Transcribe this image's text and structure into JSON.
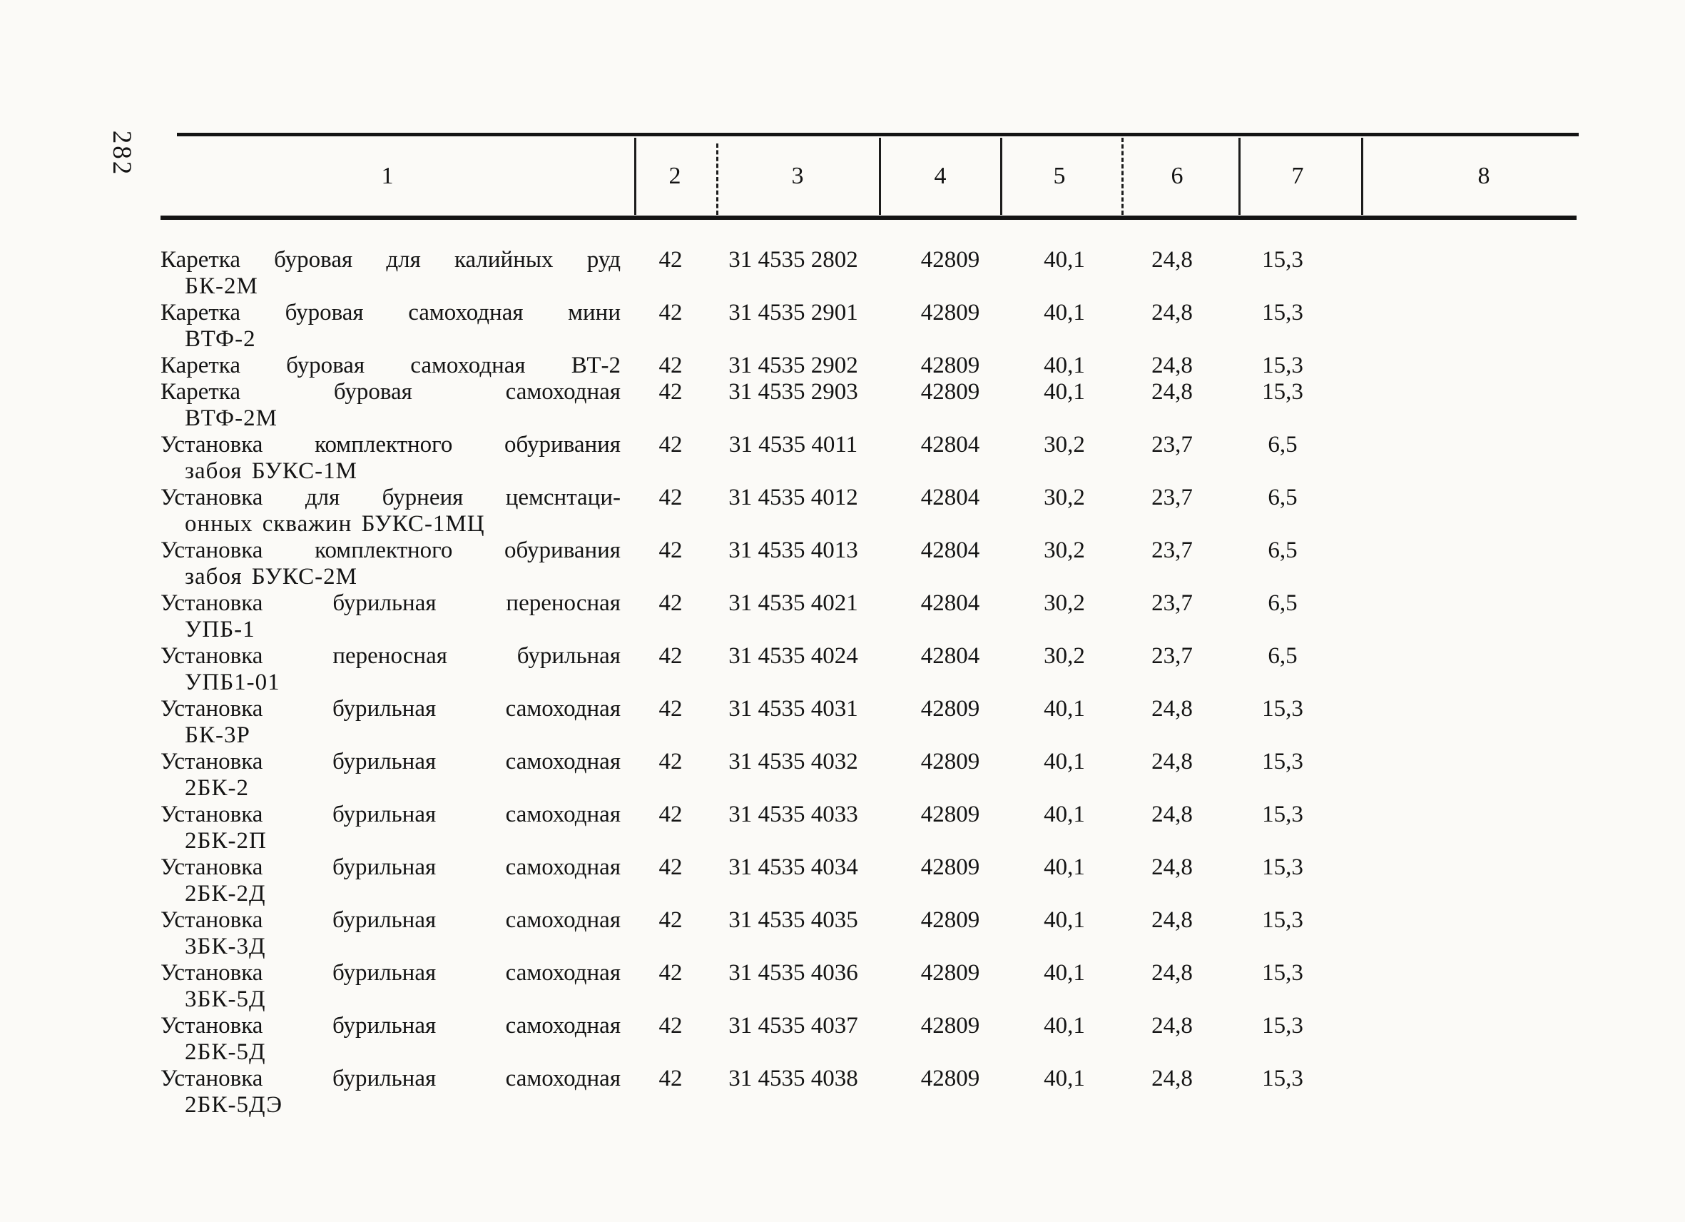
{
  "page": {
    "number": "282",
    "paper_color": "#fbfaf7",
    "ink_color": "#141414"
  },
  "table": {
    "headers": [
      "1",
      "2",
      "3",
      "4",
      "5",
      "6",
      "7",
      "8"
    ],
    "rows": [
      {
        "name": [
          "Каретка буровая для калийных руд",
          "БК-2М"
        ],
        "cells": [
          "42",
          "31 4535 2802",
          "42809",
          "40,1",
          "24,8",
          "15,3",
          ""
        ]
      },
      {
        "name": [
          "Каретка буровая самоходная мини",
          "ВТФ-2"
        ],
        "cells": [
          "42",
          "31 4535 2901",
          "42809",
          "40,1",
          "24,8",
          "15,3",
          ""
        ]
      },
      {
        "name": [
          "Каретка буровая самоходная ВТ-2"
        ],
        "cells": [
          "42",
          "31 4535 2902",
          "42809",
          "40,1",
          "24,8",
          "15,3",
          ""
        ]
      },
      {
        "name": [
          "Каретка буровая самоходная",
          "ВТФ-2М"
        ],
        "cells": [
          "42",
          "31 4535 2903",
          "42809",
          "40,1",
          "24,8",
          "15,3",
          ""
        ]
      },
      {
        "name": [
          "Установка комплектного обуривания",
          "забоя БУКС-1М"
        ],
        "cells": [
          "42",
          "31 4535 4011",
          "42804",
          "30,2",
          "23,7",
          "6,5",
          ""
        ]
      },
      {
        "name": [
          "Установка для бурнеия цемснтаци-",
          "онных скважин БУКС-1МЦ"
        ],
        "cells": [
          "42",
          "31 4535 4012",
          "42804",
          "30,2",
          "23,7",
          "6,5",
          ""
        ]
      },
      {
        "name": [
          "Установка комплектного обуривания",
          "забоя БУКС-2М"
        ],
        "cells": [
          "42",
          "31 4535 4013",
          "42804",
          "30,2",
          "23,7",
          "6,5",
          ""
        ]
      },
      {
        "name": [
          "Установка бурильная переносная",
          "УПБ-1"
        ],
        "cells": [
          "42",
          "31 4535 4021",
          "42804",
          "30,2",
          "23,7",
          "6,5",
          ""
        ]
      },
      {
        "name": [
          "Установка переносная бурильная",
          "УПБ1-01"
        ],
        "cells": [
          "42",
          "31 4535 4024",
          "42804",
          "30,2",
          "23,7",
          "6,5",
          ""
        ]
      },
      {
        "name": [
          "Установка бурильная самоходная",
          "БК-3Р"
        ],
        "cells": [
          "42",
          "31 4535 4031",
          "42809",
          "40,1",
          "24,8",
          "15,3",
          ""
        ]
      },
      {
        "name": [
          "Установка бурильная самоходная",
          "2БК-2"
        ],
        "cells": [
          "42",
          "31 4535 4032",
          "42809",
          "40,1",
          "24,8",
          "15,3",
          ""
        ]
      },
      {
        "name": [
          "Установка бурильная самоходная",
          "2БК-2П"
        ],
        "cells": [
          "42",
          "31 4535 4033",
          "42809",
          "40,1",
          "24,8",
          "15,3",
          ""
        ]
      },
      {
        "name": [
          "Установка бурильная самоходная",
          "2БК-2Д"
        ],
        "cells": [
          "42",
          "31 4535 4034",
          "42809",
          "40,1",
          "24,8",
          "15,3",
          ""
        ]
      },
      {
        "name": [
          "Установка бурильная самоходная",
          "3БК-3Д"
        ],
        "cells": [
          "42",
          "31 4535 4035",
          "42809",
          "40,1",
          "24,8",
          "15,3",
          ""
        ]
      },
      {
        "name": [
          "Установка бурильная самоходная",
          "3БК-5Д"
        ],
        "cells": [
          "42",
          "31 4535 4036",
          "42809",
          "40,1",
          "24,8",
          "15,3",
          ""
        ]
      },
      {
        "name": [
          "Установка бурильная самоходная",
          "2БК-5Д"
        ],
        "cells": [
          "42",
          "31 4535 4037",
          "42809",
          "40,1",
          "24,8",
          "15,3",
          ""
        ]
      },
      {
        "name": [
          "Установка бурильная самоходная",
          "2БК-5ДЭ"
        ],
        "cells": [
          "42",
          "31 4535 4038",
          "42809",
          "40,1",
          "24,8",
          "15,3",
          ""
        ]
      }
    ]
  }
}
